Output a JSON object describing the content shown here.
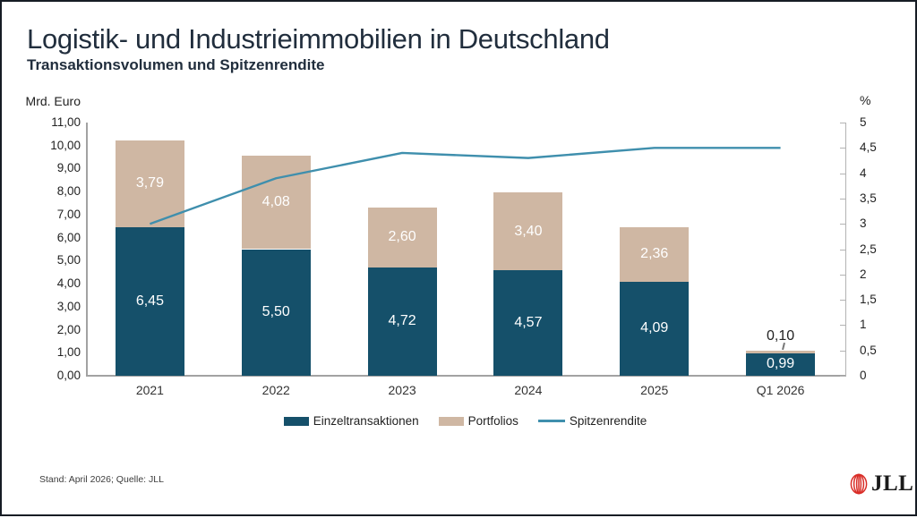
{
  "header": {
    "title": "Logistik- und Industrieimmobilien in Deutschland",
    "subtitle": "Transaktionsvolumen und Spitzenrendite"
  },
  "footer": {
    "text": "Stand: April 2026; Quelle: JLL"
  },
  "logo": {
    "text": "JLL",
    "brand_red": "#d92d27"
  },
  "chart_data": {
    "type": "bar",
    "stacked": true,
    "grid": false,
    "legend_position": "bottom",
    "categories": [
      "2021",
      "2022",
      "2023",
      "2024",
      "2025",
      "Q1 2026"
    ],
    "series": [
      {
        "name": "Einzeltransaktionen",
        "type": "bar",
        "axis": "left",
        "color": "#15506a",
        "values": [
          6.45,
          5.5,
          4.72,
          4.57,
          4.09,
          0.99
        ],
        "labels": [
          "6,45",
          "5,50",
          "4,72",
          "4,57",
          "4,09",
          "0,99"
        ]
      },
      {
        "name": "Portfolios",
        "type": "bar",
        "axis": "left",
        "color": "#cfb7a3",
        "values": [
          3.79,
          4.08,
          2.6,
          3.4,
          2.36,
          0.1
        ],
        "labels": [
          "3,79",
          "4,08",
          "2,60",
          "3,40",
          "2,36",
          "0,10"
        ]
      },
      {
        "name": "Spitzenrendite",
        "type": "line",
        "axis": "right",
        "color": "#3f8fad",
        "values": [
          3.0,
          3.9,
          4.4,
          4.3,
          4.5,
          4.5
        ]
      }
    ],
    "left_axis": {
      "title": "Mrd. Euro",
      "min": 0,
      "max": 11,
      "ticks": [
        "11,00",
        "10,00",
        "9,00",
        "8,00",
        "7,00",
        "6,00",
        "5,00",
        "4,00",
        "3,00",
        "2,00",
        "1,00",
        "0,00"
      ]
    },
    "right_axis": {
      "title": "%",
      "min": 0,
      "max": 5,
      "ticks": [
        "5",
        "4,5",
        "4",
        "3,5",
        "3",
        "2,5",
        "2",
        "1,5",
        "1",
        "0,5",
        "0"
      ]
    }
  }
}
